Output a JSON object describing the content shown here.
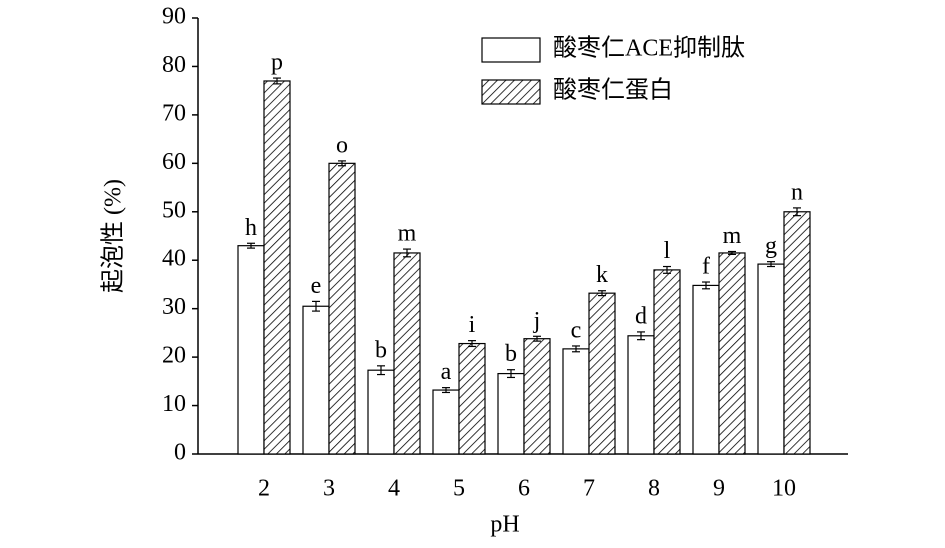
{
  "chart_data": {
    "type": "bar",
    "x_label": "pH",
    "y_label": "起泡性 (%)",
    "categories": [
      "2",
      "3",
      "4",
      "5",
      "6",
      "7",
      "8",
      "9",
      "10"
    ],
    "series": [
      {
        "name": "酸枣仁ACE抑制肽",
        "color": "#ffffff",
        "hatch": false,
        "values": [
          43,
          30.5,
          17.3,
          13.2,
          16.6,
          21.7,
          24.4,
          34.8,
          39.2
        ],
        "errors": [
          0.5,
          1.0,
          0.9,
          0.5,
          0.8,
          0.6,
          0.8,
          0.7,
          0.5
        ],
        "significance": [
          "h",
          "e",
          "b",
          "a",
          "b",
          "c",
          "d",
          "f",
          "g"
        ]
      },
      {
        "name": "酸枣仁蛋白",
        "color": "#ffffff",
        "hatch": true,
        "values": [
          77,
          60,
          41.5,
          22.8,
          23.8,
          33.2,
          38,
          41.5,
          50
        ],
        "errors": [
          0.6,
          0.5,
          0.8,
          0.6,
          0.5,
          0.5,
          0.7,
          0.3,
          0.8
        ],
        "significance": [
          "p",
          "o",
          "m",
          "i",
          "j",
          "k",
          "l",
          "m",
          "n"
        ]
      }
    ],
    "ylim": [
      0,
      90
    ],
    "yticks": [
      0,
      10,
      20,
      30,
      40,
      50,
      60,
      70,
      80,
      90
    ],
    "grid": false,
    "legend": "top-right"
  }
}
